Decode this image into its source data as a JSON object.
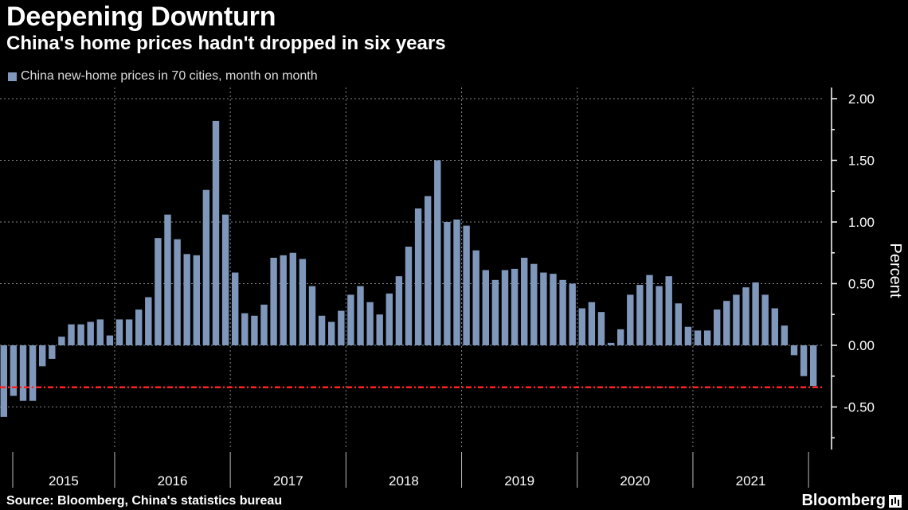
{
  "header": {
    "title": "Deepening Downturn",
    "subtitle": "China's home prices hadn't dropped in six years"
  },
  "legend": {
    "label": "China new-home prices in 70 cities, month on month"
  },
  "footer": {
    "source": "Source: Bloomberg, China's statistics bureau",
    "brand": "Bloomberg"
  },
  "colors": {
    "bar": "#7f97ba",
    "reference_line": "#ff2020",
    "grid": "#888888",
    "background": "#000000"
  },
  "chart_data": {
    "type": "bar",
    "ylabel": "Percent",
    "ylim": [
      -0.8,
      2.05
    ],
    "yticks": [
      2.0,
      1.5,
      1.0,
      0.5,
      0.0,
      -0.5
    ],
    "ytick_labels": [
      "2.00",
      "1.50",
      "1.00",
      "0.50",
      "0.00",
      "-0.50"
    ],
    "years": [
      "2015",
      "2016",
      "2017",
      "2018",
      "2019",
      "2020",
      "2021"
    ],
    "reference_line": {
      "value": -0.34,
      "style": "dash-dot"
    },
    "grid": true,
    "legend_position": "top-left",
    "series": [
      {
        "values": [
          -0.58,
          -0.41,
          -0.45,
          -0.45,
          -0.17,
          -0.11,
          0.07,
          0.17,
          0.17,
          0.19,
          0.21,
          0.08,
          0.21,
          0.21,
          0.29,
          0.39,
          0.87,
          1.06,
          0.86,
          0.74,
          0.73,
          1.26,
          1.82,
          1.06,
          0.59,
          0.26,
          0.24,
          0.33,
          0.71,
          0.73,
          0.75,
          0.7,
          0.48,
          0.24,
          0.19,
          0.28,
          0.41,
          0.48,
          0.35,
          0.25,
          0.42,
          0.56,
          0.8,
          1.11,
          1.21,
          1.5,
          1.0,
          1.02,
          0.97,
          0.77,
          0.61,
          0.53,
          0.61,
          0.62,
          0.71,
          0.66,
          0.59,
          0.58,
          0.53,
          0.5,
          0.3,
          0.35,
          0.27,
          0.02,
          0.13,
          0.41,
          0.49,
          0.57,
          0.48,
          0.56,
          0.34,
          0.15,
          0.12,
          0.12,
          0.29,
          0.36,
          0.41,
          0.47,
          0.51,
          0.41,
          0.3,
          0.16,
          -0.08,
          -0.25,
          -0.33
        ]
      }
    ]
  }
}
